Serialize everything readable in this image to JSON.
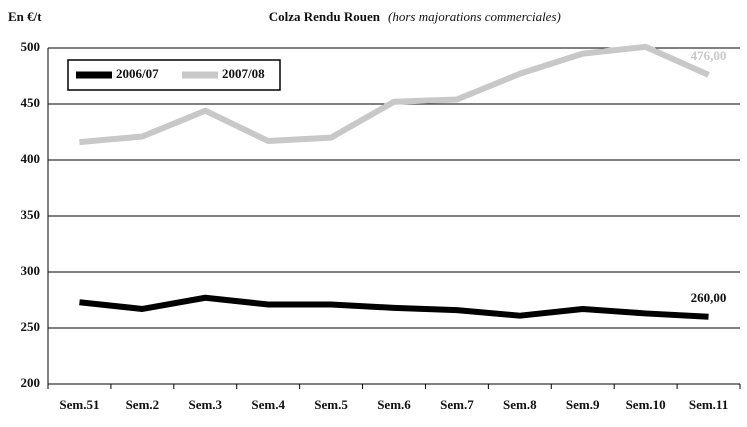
{
  "chart_data": {
    "type": "line",
    "title": "Colza Rendu Rouen",
    "subtitle": "(hors majorations commerciales)",
    "y_label": "En €/t",
    "categories": [
      "Sem.51",
      "Sem.2",
      "Sem.3",
      "Sem.4",
      "Sem.5",
      "Sem.6",
      "Sem.7",
      "Sem.8",
      "Sem.9",
      "Sem.10",
      "Sem.11"
    ],
    "series": [
      {
        "name": "2006/07",
        "color": "#000000",
        "values": [
          273,
          267,
          277,
          271,
          271,
          268,
          266,
          261,
          267,
          263,
          260
        ],
        "value_labels": [
          null,
          null,
          null,
          null,
          null,
          null,
          null,
          null,
          null,
          null,
          "260,00"
        ]
      },
      {
        "name": "2007/08",
        "color": "#c8c8c8",
        "values": [
          416,
          421,
          444,
          417,
          420,
          452,
          454,
          477,
          495,
          501,
          476
        ],
        "value_labels": [
          null,
          null,
          null,
          null,
          null,
          null,
          null,
          null,
          null,
          null,
          "476,00"
        ]
      }
    ],
    "ylim": [
      200,
      500
    ],
    "yticks": [
      200,
      250,
      300,
      350,
      400,
      450,
      500
    ],
    "grid": true,
    "legend": "top-left"
  }
}
